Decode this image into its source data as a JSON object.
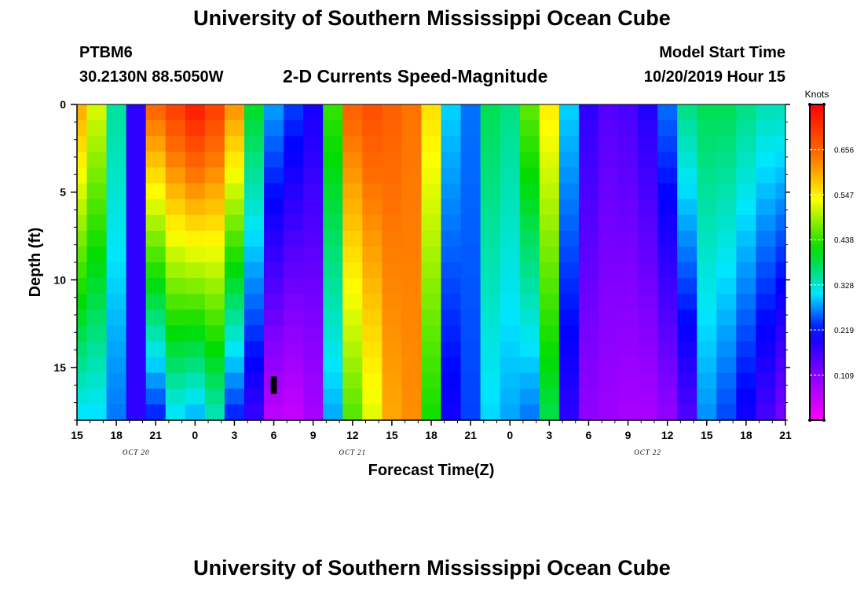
{
  "header": {
    "title": "University of Southern Mississippi Ocean Cube",
    "station": "PTBM6",
    "coords": "30.2130N 88.5050W",
    "subtitle": "2-D Currents Speed-Magnitude",
    "model_start_label": "Model Start Time",
    "model_start_value": "10/20/2019 Hour 15"
  },
  "footer": {
    "title": "University of Southern Mississippi Ocean Cube"
  },
  "chart_data": {
    "type": "heatmap",
    "xlabel": "Forecast Time(Z)",
    "ylabel": "Depth (ft)",
    "x_ticks": [
      "15",
      "18",
      "21",
      "0",
      "3",
      "6",
      "9",
      "12",
      "15",
      "18",
      "21",
      "0",
      "3",
      "6",
      "9",
      "12",
      "15",
      "18",
      "21"
    ],
    "x_hours": [
      0,
      3,
      6,
      9,
      12,
      15,
      18,
      21,
      24,
      27,
      30,
      33,
      36,
      39,
      42,
      45,
      48,
      51,
      54
    ],
    "date_labels": [
      {
        "hour": 4.5,
        "label": "OCT 20"
      },
      {
        "hour": 21,
        "label": "OCT 21"
      },
      {
        "hour": 43.5,
        "label": "OCT 22"
      }
    ],
    "y_ticks": [
      0,
      5,
      10,
      15
    ],
    "ylim": [
      0,
      18
    ],
    "xlim": [
      0,
      54
    ],
    "colorbar": {
      "label": "Knots",
      "ticks": [
        0.109,
        0.219,
        0.328,
        0.438,
        0.547,
        0.656
      ],
      "range": [
        0,
        0.766
      ]
    },
    "depth_levels": [
      0,
      18
    ],
    "profiles": [
      {
        "hour": 0,
        "surface": 0.6,
        "bottom": 0.3
      },
      {
        "hour": 1.5,
        "surface": 0.52,
        "bottom": 0.3
      },
      {
        "hour": 3,
        "surface": 0.35,
        "bottom": 0.26
      },
      {
        "hour": 4.5,
        "surface": 0.18,
        "bottom": 0.18
      },
      {
        "hour": 6,
        "surface": 0.66,
        "bottom": 0.22
      },
      {
        "hour": 7.5,
        "surface": 0.7,
        "bottom": 0.3
      },
      {
        "hour": 9,
        "surface": 0.74,
        "bottom": 0.28
      },
      {
        "hour": 10.5,
        "surface": 0.7,
        "bottom": 0.33
      },
      {
        "hour": 12,
        "surface": 0.62,
        "bottom": 0.22
      },
      {
        "hour": 13.5,
        "surface": 0.4,
        "bottom": 0.17
      },
      {
        "hour": 15,
        "surface": 0.28,
        "bottom": 0.06
      },
      {
        "hour": 16.5,
        "surface": 0.24,
        "bottom": 0.05
      },
      {
        "hour": 18,
        "surface": 0.2,
        "bottom": 0.08
      },
      {
        "hour": 19.5,
        "surface": 0.44,
        "bottom": 0.28
      },
      {
        "hour": 21,
        "surface": 0.66,
        "bottom": 0.45
      },
      {
        "hour": 22.5,
        "surface": 0.68,
        "bottom": 0.52
      },
      {
        "hour": 24,
        "surface": 0.66,
        "bottom": 0.6
      },
      {
        "hour": 25.5,
        "surface": 0.64,
        "bottom": 0.62
      },
      {
        "hour": 27,
        "surface": 0.56,
        "bottom": 0.42
      },
      {
        "hour": 28.5,
        "surface": 0.3,
        "bottom": 0.2
      },
      {
        "hour": 30,
        "surface": 0.26,
        "bottom": 0.24
      },
      {
        "hour": 31.5,
        "surface": 0.38,
        "bottom": 0.3
      },
      {
        "hour": 33,
        "surface": 0.36,
        "bottom": 0.28
      },
      {
        "hour": 34.5,
        "surface": 0.46,
        "bottom": 0.26
      },
      {
        "hour": 36,
        "surface": 0.55,
        "bottom": 0.38
      },
      {
        "hour": 37.5,
        "surface": 0.3,
        "bottom": 0.18
      },
      {
        "hour": 39,
        "surface": 0.18,
        "bottom": 0.1
      },
      {
        "hour": 40.5,
        "surface": 0.15,
        "bottom": 0.09
      },
      {
        "hour": 42,
        "surface": 0.16,
        "bottom": 0.08
      },
      {
        "hour": 43.5,
        "surface": 0.19,
        "bottom": 0.08
      },
      {
        "hour": 45,
        "surface": 0.26,
        "bottom": 0.1
      },
      {
        "hour": 46.5,
        "surface": 0.36,
        "bottom": 0.15
      },
      {
        "hour": 48,
        "surface": 0.38,
        "bottom": 0.27
      },
      {
        "hour": 49.5,
        "surface": 0.38,
        "bottom": 0.24
      },
      {
        "hour": 51,
        "surface": 0.36,
        "bottom": 0.2
      },
      {
        "hour": 52.5,
        "surface": 0.34,
        "bottom": 0.16
      },
      {
        "hour": 54,
        "surface": 0.34,
        "bottom": 0.12
      }
    ],
    "marker": {
      "hour": 15,
      "depth_from": 15.5,
      "depth_to": 16.5
    }
  }
}
